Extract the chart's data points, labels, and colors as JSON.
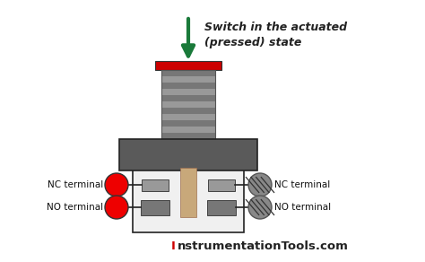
{
  "bg_color": "#ffffff",
  "arrow_color": "#1a7a3a",
  "red_cap_color": "#cc0000",
  "stem_color": "#c8a87a",
  "body_color": "#5a5a5a",
  "plunger_color": "#999999",
  "plunger_dark": "#777777",
  "box_border": "#222222",
  "terminal_red": "#ee0000",
  "terminal_gray": "#888888",
  "connector_light": "#999999",
  "connector_dark": "#777777",
  "text_title1": "Switch in the actuated",
  "text_title2": "(pressed) state",
  "label_NC_left": "NC terminal",
  "label_NO_left": "NO terminal",
  "label_NC_right": "NC terminal",
  "label_NO_right": "NO terminal",
  "watermark_I": "I",
  "watermark_rest": "nstrumentationTools.com",
  "watermark_color_I": "#cc0000",
  "watermark_color_rest": "#222222"
}
